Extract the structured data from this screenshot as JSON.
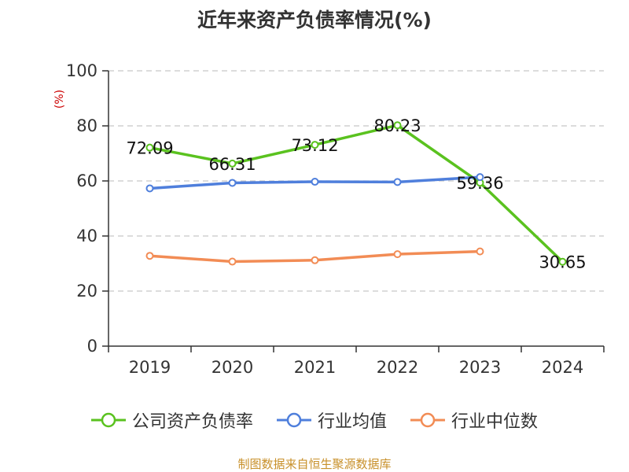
{
  "title": "近年来资产负债率情况(%)",
  "source_note": "制图数据来自恒生聚源数据库",
  "colors": {
    "company": "#5ac21f",
    "industry_avg": "#4f7fdc",
    "industry_median": "#f28c55",
    "grid": "#c8c8c8",
    "axis": "#333333"
  },
  "legend": [
    {
      "key": "company",
      "label": "公司资产负债率"
    },
    {
      "key": "industry_avg",
      "label": "行业均值"
    },
    {
      "key": "industry_median",
      "label": "行业中位数"
    }
  ],
  "chart_data": {
    "type": "line",
    "title": "近年来资产负债率情况(%)",
    "ylabel": "(%)",
    "categories": [
      "2019",
      "2020",
      "2021",
      "2022",
      "2023",
      "2024"
    ],
    "ylim": [
      0,
      100
    ],
    "yticks": [
      0,
      20,
      40,
      60,
      80,
      100
    ],
    "grid": true,
    "legend_position": "bottom",
    "series": [
      {
        "key": "company",
        "name": "公司资产负债率",
        "values": [
          72.09,
          66.31,
          73.12,
          80.23,
          59.36,
          30.65
        ],
        "labels": [
          "72.09",
          "66.31",
          "73.12",
          "80.23",
          "59.36",
          "30.65"
        ]
      },
      {
        "key": "industry_avg",
        "name": "行业均值",
        "values": [
          57.3,
          59.3,
          59.7,
          59.6,
          61.4,
          null
        ]
      },
      {
        "key": "industry_median",
        "name": "行业中位数",
        "values": [
          32.8,
          30.7,
          31.2,
          33.4,
          34.4,
          null
        ]
      }
    ]
  }
}
